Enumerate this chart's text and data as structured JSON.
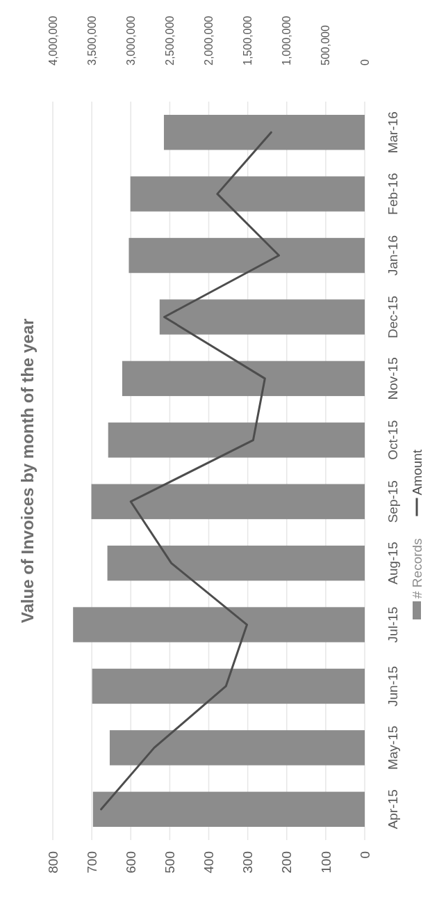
{
  "chart_data": {
    "type": "bar",
    "orientation": "horizontal",
    "title": "Value of Invoices by month of the year",
    "categories": [
      "Mar-16",
      "Feb-16",
      "Jan-16",
      "Dec-15",
      "Nov-15",
      "Oct-15",
      "Sep-15",
      "Aug-15",
      "Jul-15",
      "Jun-15",
      "May-15",
      "Apr-15"
    ],
    "series": [
      {
        "name": "# Records",
        "color": "#8c8c8c",
        "values": [
          515,
          601,
          605,
          526,
          622,
          658,
          701,
          660,
          748,
          699,
          654,
          697
        ]
      },
      {
        "name": "Amount",
        "type": "line",
        "axis": "x2",
        "color": "#4d4d4d",
        "values": [
          1200000,
          1890000,
          1100000,
          2570000,
          1280000,
          1430000,
          3000000,
          2480000,
          1510000,
          1780000,
          2700000,
          3380000
        ]
      }
    ],
    "xlim": [
      800,
      0
    ],
    "xticks": [
      800,
      700,
      600,
      500,
      400,
      300,
      200,
      100,
      0
    ],
    "x2lim": [
      4000000,
      0
    ],
    "x2ticks": [
      {
        "value": 4000000,
        "label": "4,000,000"
      },
      {
        "value": 3500000,
        "label": "3,500,000"
      },
      {
        "value": 3000000,
        "label": "3,000,000"
      },
      {
        "value": 2500000,
        "label": "2,500,000"
      },
      {
        "value": 2000000,
        "label": "2,000,000"
      },
      {
        "value": 1500000,
        "label": "1,500,000"
      },
      {
        "value": 1000000,
        "label": "1,000,000"
      },
      {
        "value": 500000,
        "label": "500,000"
      },
      {
        "value": 0,
        "label": "0"
      }
    ],
    "grid": "x",
    "legend": "right",
    "marker": "none",
    "line_style": "solid"
  }
}
